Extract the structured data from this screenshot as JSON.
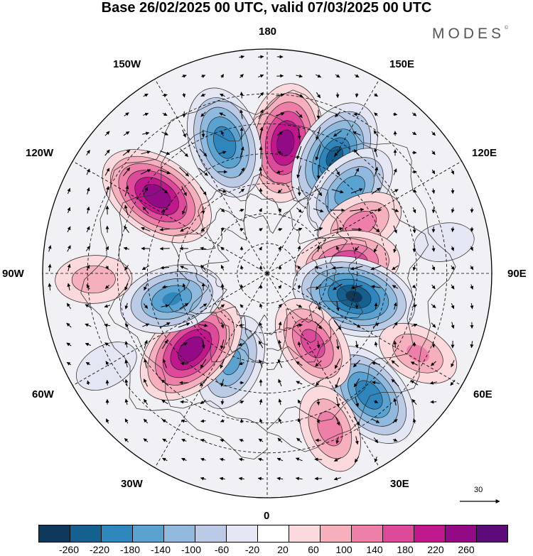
{
  "title": "Base 26/02/2025 00 UTC, valid 07/03/2025 00 UTC",
  "logo": "MODES",
  "logo_mark": "©",
  "longitude_labels": [
    "180",
    "150E",
    "120E",
    "90E",
    "60E",
    "30E",
    "0",
    "30W",
    "60W",
    "90W",
    "120W",
    "150W"
  ],
  "reference_vector": {
    "value": "30"
  },
  "colorbar": {
    "colors": [
      "#0d3a5c",
      "#15608f",
      "#2f86bd",
      "#5aa2cf",
      "#8fbadd",
      "#bccbe5",
      "#e4e6f3",
      "#ffffff",
      "#fbd9dc",
      "#f6b0bd",
      "#ee7fa8",
      "#dd4a9a",
      "#c0178c",
      "#930a86",
      "#5c0b78"
    ],
    "tick_labels": [
      "-260",
      "-220",
      "-180",
      "-140",
      "-100",
      "-60",
      "-20",
      "20",
      "60",
      "100",
      "140",
      "180",
      "220",
      "260"
    ]
  },
  "anomaly_centers": [
    {
      "lon": 172,
      "colat": 44,
      "value": 240
    },
    {
      "lon": 150,
      "colat": 45,
      "value": -230
    },
    {
      "lon": 135,
      "colat": 39,
      "value": -170
    },
    {
      "lon": 118,
      "colat": 35,
      "value": 120
    },
    {
      "lon": 97,
      "colat": 27,
      "value": 180
    },
    {
      "lon": 75,
      "colat": 30,
      "value": -260
    },
    {
      "lon": 62,
      "colat": 57,
      "value": 100
    },
    {
      "lon": 40,
      "colat": 53,
      "value": -210
    },
    {
      "lon": 33,
      "colat": 28,
      "value": 160
    },
    {
      "lon": 22,
      "colat": 56,
      "value": 120
    },
    {
      "lon": -22,
      "colat": 32,
      "value": -150
    },
    {
      "lon": -45,
      "colat": 36,
      "value": 250
    },
    {
      "lon": -75,
      "colat": 33,
      "value": -180
    },
    {
      "lon": -88,
      "colat": 58,
      "value": 80
    },
    {
      "lon": -125,
      "colat": 45,
      "value": 250
    },
    {
      "lon": -162,
      "colat": 46,
      "value": -210
    },
    {
      "lon": -60,
      "colat": 62,
      "value": -50
    },
    {
      "lon": 100,
      "colat": 60,
      "value": -40
    }
  ]
}
